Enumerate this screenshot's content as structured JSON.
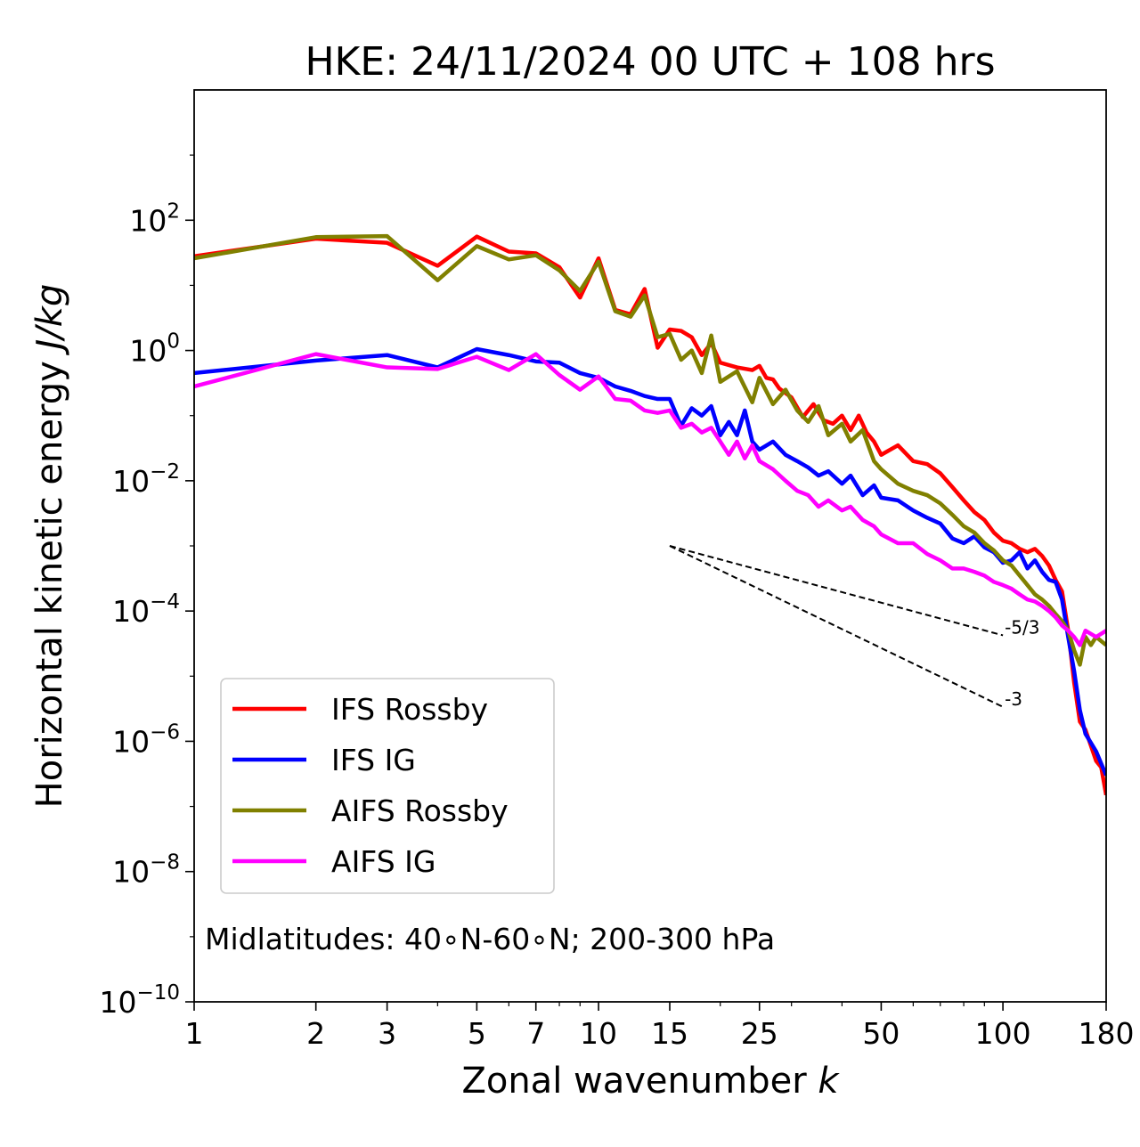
{
  "chart_data": {
    "type": "line",
    "title": "HKE: 24/11/2024 00 UTC + 108 hrs",
    "xlabel_text": "Zonal wavenumber ",
    "xlabel_var": "k",
    "ylabel_text": "Horizontal kinetic energy ",
    "ylabel_unit": "J/kg",
    "x_scale": "log",
    "y_scale": "log",
    "xlim": [
      1,
      180
    ],
    "ylim": [
      1e-10,
      10000
    ],
    "x_ticks": [
      1,
      2,
      3,
      5,
      7,
      10,
      15,
      25,
      50,
      100,
      180
    ],
    "x_tick_labels": [
      "1",
      "2",
      "3",
      "5",
      "7",
      "10",
      "15",
      "25",
      "50",
      "100",
      "180"
    ],
    "y_ticks": [
      1e-10,
      1e-08,
      1e-06,
      0.0001,
      0.01,
      1,
      100
    ],
    "y_tick_exponents": [
      "−10",
      "−8",
      "−6",
      "−4",
      "−2",
      "0",
      "2"
    ],
    "y_tick_base": "10",
    "grid": false,
    "legend_position": "lower-left",
    "annotation": "Midlatitudes: 40∘N-60∘N; 200-300 hPa",
    "reference_lines": [
      {
        "label": "-5/3",
        "slope": -1.6667,
        "x0": 15,
        "y0": 0.001,
        "x1": 100
      },
      {
        "label": "-3",
        "slope": -3,
        "x0": 15,
        "y0": 0.001,
        "x1": 100
      }
    ],
    "series": [
      {
        "name": "IFS Rossby",
        "color": "#ff0000",
        "points": [
          [
            1,
            28
          ],
          [
            2,
            52
          ],
          [
            3,
            45
          ],
          [
            4,
            20
          ],
          [
            5,
            56
          ],
          [
            6,
            33
          ],
          [
            7,
            31
          ],
          [
            8,
            19
          ],
          [
            9,
            6.5
          ],
          [
            10,
            26
          ],
          [
            11,
            4.2
          ],
          [
            12,
            3.6
          ],
          [
            13,
            8.8
          ],
          [
            14,
            1.1
          ],
          [
            15,
            2.1
          ],
          [
            16,
            2.0
          ],
          [
            17,
            1.6
          ],
          [
            18,
            0.85
          ],
          [
            19,
            1.3
          ],
          [
            20,
            0.65
          ],
          [
            22,
            0.55
          ],
          [
            24,
            0.5
          ],
          [
            25,
            0.58
          ],
          [
            26,
            0.38
          ],
          [
            27,
            0.36
          ],
          [
            28,
            0.26
          ],
          [
            30,
            0.19
          ],
          [
            32,
            0.095
          ],
          [
            34,
            0.15
          ],
          [
            36,
            0.085
          ],
          [
            38,
            0.075
          ],
          [
            40,
            0.1
          ],
          [
            42,
            0.06
          ],
          [
            44,
            0.1
          ],
          [
            46,
            0.055
          ],
          [
            48,
            0.04
          ],
          [
            50,
            0.025
          ],
          [
            55,
            0.035
          ],
          [
            60,
            0.02
          ],
          [
            65,
            0.018
          ],
          [
            70,
            0.013
          ],
          [
            75,
            0.008
          ],
          [
            80,
            0.005
          ],
          [
            85,
            0.0033
          ],
          [
            90,
            0.0025
          ],
          [
            95,
            0.0016
          ],
          [
            100,
            0.0012
          ],
          [
            105,
            0.0011
          ],
          [
            110,
            0.0009
          ],
          [
            115,
            0.0008
          ],
          [
            120,
            0.0009
          ],
          [
            125,
            0.0007
          ],
          [
            130,
            0.0005
          ],
          [
            135,
            0.0003
          ],
          [
            140,
            0.0002
          ],
          [
            145,
            5e-05
          ],
          [
            150,
            8e-06
          ],
          [
            155,
            2e-06
          ],
          [
            160,
            1.5e-06
          ],
          [
            170,
            5e-07
          ],
          [
            175,
            4e-07
          ],
          [
            180,
            1.5e-07
          ]
        ]
      },
      {
        "name": "IFS IG",
        "color": "#0000ff",
        "points": [
          [
            1,
            0.45
          ],
          [
            2,
            0.7
          ],
          [
            3,
            0.85
          ],
          [
            4,
            0.55
          ],
          [
            5,
            1.05
          ],
          [
            6,
            0.85
          ],
          [
            7,
            0.68
          ],
          [
            8,
            0.65
          ],
          [
            9,
            0.45
          ],
          [
            10,
            0.38
          ],
          [
            11,
            0.28
          ],
          [
            12,
            0.24
          ],
          [
            13,
            0.2
          ],
          [
            14,
            0.18
          ],
          [
            15,
            0.18
          ],
          [
            16,
            0.07
          ],
          [
            17,
            0.13
          ],
          [
            18,
            0.1
          ],
          [
            19,
            0.14
          ],
          [
            20,
            0.05
          ],
          [
            21,
            0.08
          ],
          [
            22,
            0.05
          ],
          [
            23,
            0.12
          ],
          [
            24,
            0.04
          ],
          [
            25,
            0.03
          ],
          [
            27,
            0.04
          ],
          [
            29,
            0.025
          ],
          [
            31,
            0.02
          ],
          [
            33,
            0.016
          ],
          [
            35,
            0.012
          ],
          [
            37,
            0.014
          ],
          [
            40,
            0.009
          ],
          [
            42,
            0.012
          ],
          [
            45,
            0.006
          ],
          [
            48,
            0.0085
          ],
          [
            50,
            0.0055
          ],
          [
            55,
            0.005
          ],
          [
            60,
            0.0035
          ],
          [
            65,
            0.0027
          ],
          [
            70,
            0.0022
          ],
          [
            75,
            0.0013
          ],
          [
            80,
            0.0011
          ],
          [
            85,
            0.0014
          ],
          [
            90,
            0.00095
          ],
          [
            95,
            0.0008
          ],
          [
            100,
            0.00055
          ],
          [
            105,
            0.0006
          ],
          [
            110,
            0.0008
          ],
          [
            115,
            0.00045
          ],
          [
            120,
            0.0006
          ],
          [
            125,
            0.0004
          ],
          [
            130,
            0.0003
          ],
          [
            135,
            0.00028
          ],
          [
            140,
            0.00015
          ],
          [
            145,
            4e-05
          ],
          [
            150,
            1.2e-05
          ],
          [
            155,
            3e-06
          ],
          [
            160,
            1.3e-06
          ],
          [
            170,
            7e-07
          ],
          [
            180,
            3e-07
          ]
        ]
      },
      {
        "name": "AIFS Rossby",
        "color": "#808000",
        "points": [
          [
            1,
            26
          ],
          [
            2,
            55
          ],
          [
            3,
            57
          ],
          [
            4,
            12
          ],
          [
            5,
            40
          ],
          [
            6,
            25
          ],
          [
            7,
            29
          ],
          [
            8,
            17
          ],
          [
            9,
            8.2
          ],
          [
            10,
            23
          ],
          [
            11,
            4.0
          ],
          [
            12,
            3.3
          ],
          [
            13,
            7.0
          ],
          [
            14,
            1.6
          ],
          [
            15,
            1.8
          ],
          [
            16,
            0.72
          ],
          [
            17,
            1.0
          ],
          [
            18,
            0.45
          ],
          [
            19,
            1.7
          ],
          [
            20,
            0.33
          ],
          [
            22,
            0.48
          ],
          [
            24,
            0.16
          ],
          [
            25,
            0.38
          ],
          [
            27,
            0.15
          ],
          [
            29,
            0.25
          ],
          [
            31,
            0.12
          ],
          [
            33,
            0.08
          ],
          [
            35,
            0.14
          ],
          [
            37,
            0.05
          ],
          [
            40,
            0.075
          ],
          [
            42,
            0.04
          ],
          [
            45,
            0.06
          ],
          [
            48,
            0.02
          ],
          [
            50,
            0.015
          ],
          [
            55,
            0.009
          ],
          [
            60,
            0.007
          ],
          [
            65,
            0.006
          ],
          [
            70,
            0.0045
          ],
          [
            75,
            0.003
          ],
          [
            80,
            0.002
          ],
          [
            85,
            0.0016
          ],
          [
            90,
            0.0011
          ],
          [
            95,
            0.00085
          ],
          [
            100,
            0.0006
          ],
          [
            105,
            0.0005
          ],
          [
            110,
            0.00035
          ],
          [
            115,
            0.00025
          ],
          [
            120,
            0.00018
          ],
          [
            125,
            0.00015
          ],
          [
            130,
            0.00012
          ],
          [
            135,
            9e-05
          ],
          [
            140,
            7e-05
          ],
          [
            145,
            5e-05
          ],
          [
            150,
            2.5e-05
          ],
          [
            155,
            1.5e-05
          ],
          [
            160,
            4e-05
          ],
          [
            165,
            3e-05
          ],
          [
            170,
            4e-05
          ],
          [
            180,
            3e-05
          ]
        ]
      },
      {
        "name": "AIFS IG",
        "color": "#ff00ff",
        "points": [
          [
            1,
            0.28
          ],
          [
            2,
            0.88
          ],
          [
            3,
            0.55
          ],
          [
            4,
            0.52
          ],
          [
            5,
            0.8
          ],
          [
            6,
            0.5
          ],
          [
            7,
            0.88
          ],
          [
            8,
            0.42
          ],
          [
            9,
            0.25
          ],
          [
            10,
            0.4
          ],
          [
            11,
            0.18
          ],
          [
            12,
            0.17
          ],
          [
            13,
            0.12
          ],
          [
            14,
            0.11
          ],
          [
            15,
            0.12
          ],
          [
            16,
            0.065
          ],
          [
            17,
            0.075
          ],
          [
            18,
            0.055
          ],
          [
            19,
            0.065
          ],
          [
            20,
            0.04
          ],
          [
            21,
            0.025
          ],
          [
            22,
            0.04
          ],
          [
            23,
            0.022
          ],
          [
            24,
            0.035
          ],
          [
            25,
            0.02
          ],
          [
            27,
            0.015
          ],
          [
            29,
            0.01
          ],
          [
            31,
            0.007
          ],
          [
            33,
            0.006
          ],
          [
            35,
            0.004
          ],
          [
            37,
            0.005
          ],
          [
            40,
            0.0035
          ],
          [
            42,
            0.004
          ],
          [
            45,
            0.0025
          ],
          [
            48,
            0.002
          ],
          [
            50,
            0.0015
          ],
          [
            55,
            0.0011
          ],
          [
            60,
            0.0011
          ],
          [
            65,
            0.00075
          ],
          [
            70,
            0.0006
          ],
          [
            75,
            0.00045
          ],
          [
            80,
            0.00045
          ],
          [
            85,
            0.0004
          ],
          [
            90,
            0.00035
          ],
          [
            95,
            0.00028
          ],
          [
            100,
            0.00025
          ],
          [
            105,
            0.00022
          ],
          [
            110,
            0.00018
          ],
          [
            115,
            0.00015
          ],
          [
            120,
            0.00014
          ],
          [
            125,
            0.00012
          ],
          [
            130,
            0.0001
          ],
          [
            135,
            8e-05
          ],
          [
            140,
            6e-05
          ],
          [
            145,
            5e-05
          ],
          [
            150,
            4e-05
          ],
          [
            155,
            3e-05
          ],
          [
            160,
            5e-05
          ],
          [
            170,
            4e-05
          ],
          [
            180,
            5e-05
          ]
        ]
      }
    ]
  }
}
